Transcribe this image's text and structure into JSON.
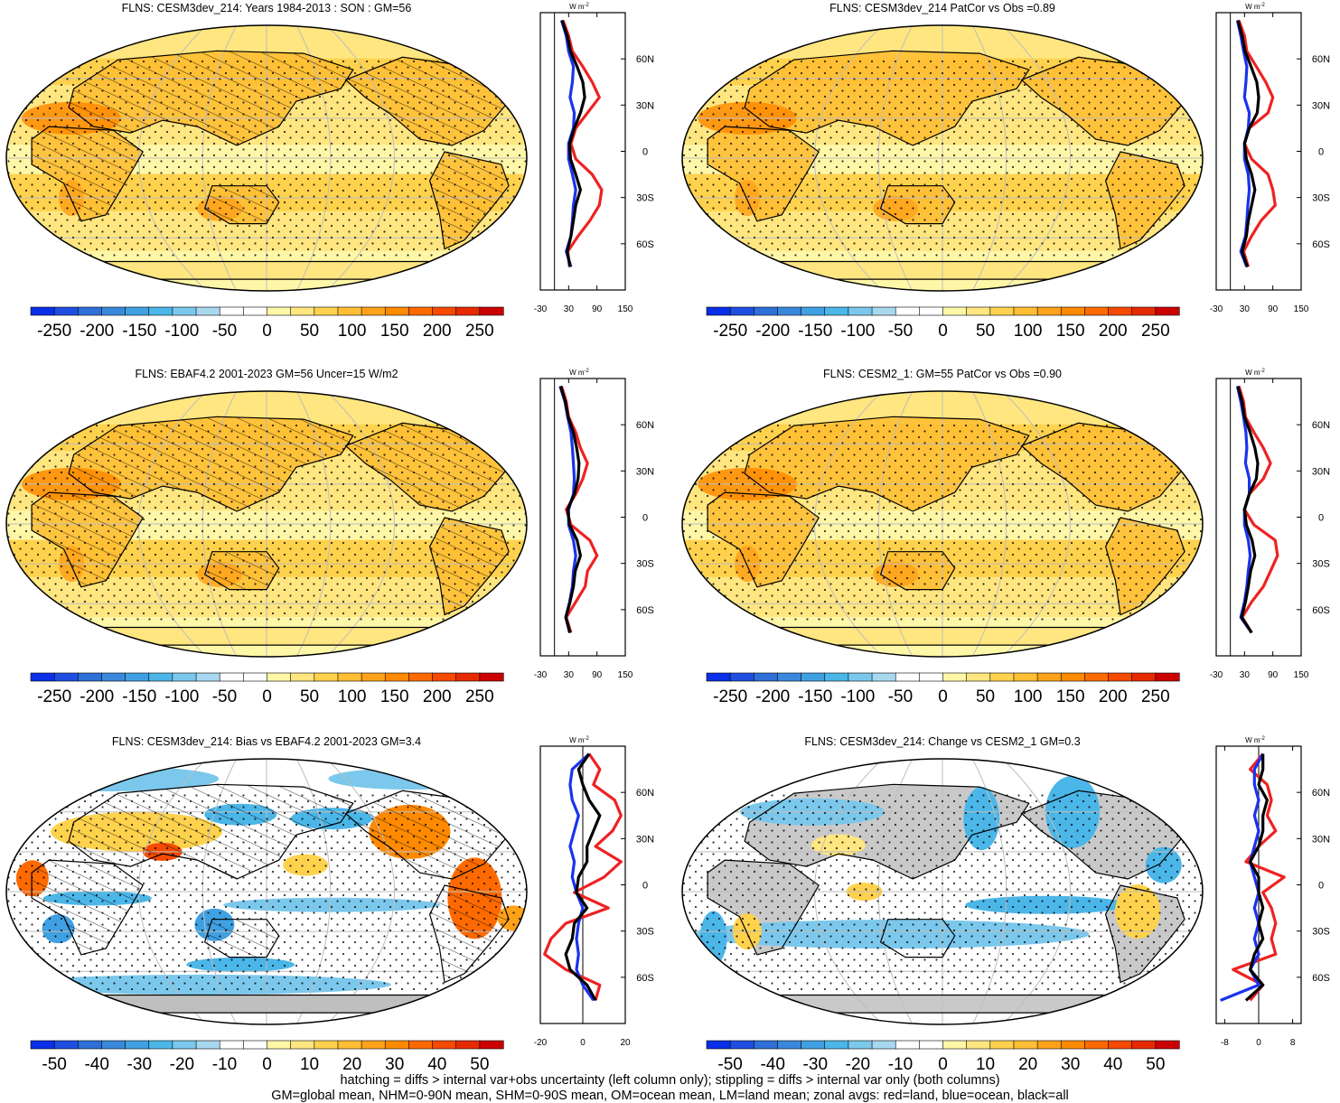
{
  "palette": {
    "neg": [
      "#0a2fe6",
      "#1f4fe0",
      "#2f6fd8",
      "#3a88db",
      "#3fa0e2",
      "#4bb6e8",
      "#7bc8ec",
      "#a8d8ef"
    ],
    "pos": [
      "#fff7a8",
      "#ffe680",
      "#ffd24d",
      "#ffbe33",
      "#ffa21a",
      "#ff8a00",
      "#ff6a00",
      "#f54a00",
      "#e62a00",
      "#cc0000"
    ],
    "land": "#bfbfbf",
    "grid": "#bdbdbd",
    "zonal_land": "#ee2222",
    "zonal_ocean": "#1a33ee",
    "zonal_all": "#000000"
  },
  "lat_labels": [
    "60N",
    "30N",
    "0",
    "30S",
    "60S"
  ],
  "unit_label": "W m",
  "unit_superscript": "-2",
  "panels": [
    {
      "id": "model-climatology",
      "title": "FLNS: CESM3dev_214: Years 1984-2013 : SON : GM=56",
      "kind": "absolute",
      "hatching": true,
      "colorbar_labels": [
        "-250",
        "-200",
        "-150",
        "-100",
        "-50",
        "0",
        "50",
        "100",
        "150",
        "200",
        "250"
      ],
      "zonal": {
        "xlim": [
          -30,
          150
        ],
        "ticks": [
          "-30",
          "30",
          "90",
          "150"
        ]
      }
    },
    {
      "id": "model-patcor",
      "title": "FLNS: CESM3dev_214 PatCor vs Obs =0.89",
      "kind": "absolute",
      "hatching": false,
      "colorbar_labels": [
        "-250",
        "-200",
        "-150",
        "-100",
        "-50",
        "0",
        "50",
        "100",
        "150",
        "200",
        "250"
      ],
      "zonal": {
        "xlim": [
          -30,
          150
        ],
        "ticks": [
          "-30",
          "30",
          "90",
          "150"
        ]
      }
    },
    {
      "id": "obs-climatology",
      "title": "FLNS: EBAF4.2 2001-2023 GM=56 Uncer=15 W/m2",
      "kind": "absolute",
      "hatching": true,
      "colorbar_labels": [
        "-250",
        "-200",
        "-150",
        "-100",
        "-50",
        "0",
        "50",
        "100",
        "150",
        "200",
        "250"
      ],
      "zonal": {
        "xlim": [
          -30,
          150
        ],
        "ticks": [
          "-30",
          "30",
          "90",
          "150"
        ]
      }
    },
    {
      "id": "baseline-climatology",
      "title": "FLNS: CESM2_1: GM=55 PatCor vs Obs =0.90",
      "kind": "absolute",
      "hatching": false,
      "colorbar_labels": [
        "-250",
        "-200",
        "-150",
        "-100",
        "-50",
        "0",
        "50",
        "100",
        "150",
        "200",
        "250"
      ],
      "zonal": {
        "xlim": [
          -30,
          150
        ],
        "ticks": [
          "-30",
          "30",
          "90",
          "150"
        ]
      }
    },
    {
      "id": "bias-vs-obs",
      "title": "FLNS: CESM3dev_214: Bias vs EBAF4.2 2001-2023  GM=3.4",
      "kind": "bias",
      "hatching": true,
      "colorbar_labels": [
        "-50",
        "-40",
        "-30",
        "-20",
        "-10",
        "0",
        "10",
        "20",
        "30",
        "40",
        "50"
      ],
      "zonal": {
        "xlim": [
          -20,
          20
        ],
        "ticks": [
          "-20",
          "0",
          "20"
        ]
      }
    },
    {
      "id": "change-vs-baseline",
      "title": "FLNS: CESM3dev_214: Change vs CESM2_1 GM=0.3",
      "kind": "change",
      "hatching": false,
      "colorbar_labels": [
        "-50",
        "-40",
        "-30",
        "-20",
        "-10",
        "0",
        "10",
        "20",
        "30",
        "40",
        "50"
      ],
      "zonal": {
        "xlim": [
          -10,
          10
        ],
        "ticks": [
          "-8",
          "0",
          "8"
        ]
      }
    }
  ],
  "chart_data": {
    "type": "heatmap",
    "lat_ticks": [
      60,
      30,
      0,
      -30,
      -60
    ],
    "profiles": [
      {
        "lat": [
          85,
          75,
          65,
          55,
          45,
          35,
          25,
          15,
          5,
          -5,
          -15,
          -25,
          -35,
          -45,
          -55,
          -65,
          -75
        ],
        "land": [
          18,
          30,
          38,
          60,
          80,
          95,
          70,
          45,
          35,
          45,
          80,
          100,
          95,
          75,
          50,
          28,
          32
        ],
        "ocean": [
          15,
          25,
          30,
          40,
          38,
          33,
          42,
          40,
          30,
          30,
          38,
          45,
          40,
          38,
          35,
          25,
          35
        ],
        "all": [
          16,
          27,
          34,
          48,
          60,
          64,
          55,
          42,
          32,
          34,
          45,
          55,
          45,
          40,
          35,
          27,
          33
        ]
      },
      {
        "lat": [
          85,
          75,
          65,
          55,
          45,
          35,
          25,
          15,
          5,
          -5,
          -15,
          -25,
          -35,
          -45,
          -55,
          -65,
          -75
        ],
        "land": [
          18,
          30,
          35,
          55,
          75,
          90,
          80,
          40,
          30,
          45,
          80,
          90,
          95,
          65,
          45,
          28,
          38
        ],
        "ocean": [
          15,
          22,
          28,
          35,
          33,
          30,
          40,
          38,
          30,
          30,
          38,
          40,
          37,
          35,
          32,
          22,
          35
        ],
        "all": [
          16,
          25,
          31,
          44,
          56,
          60,
          57,
          40,
          30,
          34,
          45,
          52,
          45,
          38,
          34,
          25,
          36
        ]
      },
      {
        "lat": [
          85,
          75,
          65,
          55,
          45,
          35,
          25,
          15,
          5,
          -5,
          -15,
          -25,
          -35,
          -45,
          -55,
          -65,
          -75
        ],
        "land": [
          15,
          25,
          30,
          45,
          55,
          70,
          60,
          45,
          25,
          35,
          75,
          90,
          70,
          65,
          45,
          25,
          35
        ],
        "ocean": [
          12,
          22,
          28,
          35,
          38,
          40,
          42,
          40,
          30,
          30,
          40,
          45,
          40,
          38,
          32,
          24,
          32
        ],
        "all": [
          13,
          23,
          29,
          40,
          47,
          52,
          50,
          42,
          28,
          32,
          48,
          55,
          44,
          40,
          33,
          24,
          33
        ]
      },
      {
        "lat": [
          85,
          75,
          65,
          55,
          45,
          35,
          25,
          15,
          5,
          -5,
          -15,
          -25,
          -35,
          -45,
          -55,
          -65,
          -75
        ],
        "land": [
          18,
          28,
          32,
          50,
          70,
          85,
          70,
          40,
          30,
          50,
          95,
          100,
          85,
          70,
          45,
          25,
          45
        ],
        "ocean": [
          15,
          22,
          28,
          33,
          35,
          32,
          40,
          40,
          30,
          30,
          38,
          42,
          38,
          35,
          30,
          22,
          45
        ],
        "all": [
          16,
          25,
          30,
          42,
          52,
          58,
          55,
          40,
          30,
          34,
          46,
          52,
          43,
          38,
          32,
          24,
          45
        ]
      },
      {
        "lat": [
          85,
          75,
          65,
          55,
          45,
          35,
          25,
          15,
          5,
          -5,
          -15,
          -25,
          -35,
          -45,
          -55,
          -65,
          -75
        ],
        "land": [
          3,
          8,
          5,
          15,
          18,
          14,
          6,
          18,
          10,
          -4,
          12,
          -8,
          -15,
          -18,
          -8,
          8,
          6
        ],
        "ocean": [
          3,
          -5,
          -6,
          -5,
          -2,
          -4,
          -6,
          -4,
          -5,
          -3,
          0,
          -2,
          -3,
          -2,
          -3,
          0,
          5
        ],
        "all": [
          3,
          -2,
          0,
          3,
          8,
          5,
          2,
          2,
          -2,
          -3,
          2,
          -4,
          -5,
          -8,
          -6,
          2,
          6
        ]
      },
      {
        "lat": [
          85,
          75,
          65,
          55,
          45,
          35,
          25,
          15,
          5,
          -5,
          -15,
          -25,
          -35,
          -45,
          -55,
          -65,
          -75
        ],
        "land": [
          1,
          -2,
          2,
          3,
          2,
          4,
          0,
          -3,
          6,
          1,
          3,
          4,
          3,
          4,
          -6,
          1,
          -2
        ],
        "ocean": [
          1,
          -1,
          -1,
          0,
          -1,
          0,
          -1,
          -2,
          -1,
          0,
          -1,
          0,
          -1,
          0,
          -2,
          0,
          -9
        ],
        "all": [
          1,
          1,
          0,
          2,
          1,
          1,
          0,
          -2,
          0,
          0,
          1,
          0,
          1,
          -1,
          -2,
          1,
          -3
        ]
      }
    ]
  },
  "footer": [
    "hatching = diffs > internal var+obs uncertainty (left column only); stippling = diffs > internal var only (both columns)",
    "GM=global mean, NHM=0-90N mean, SHM=0-90S mean, OM=ocean mean, LM=land mean; zonal avgs: red=land, blue=ocean, black=all"
  ]
}
